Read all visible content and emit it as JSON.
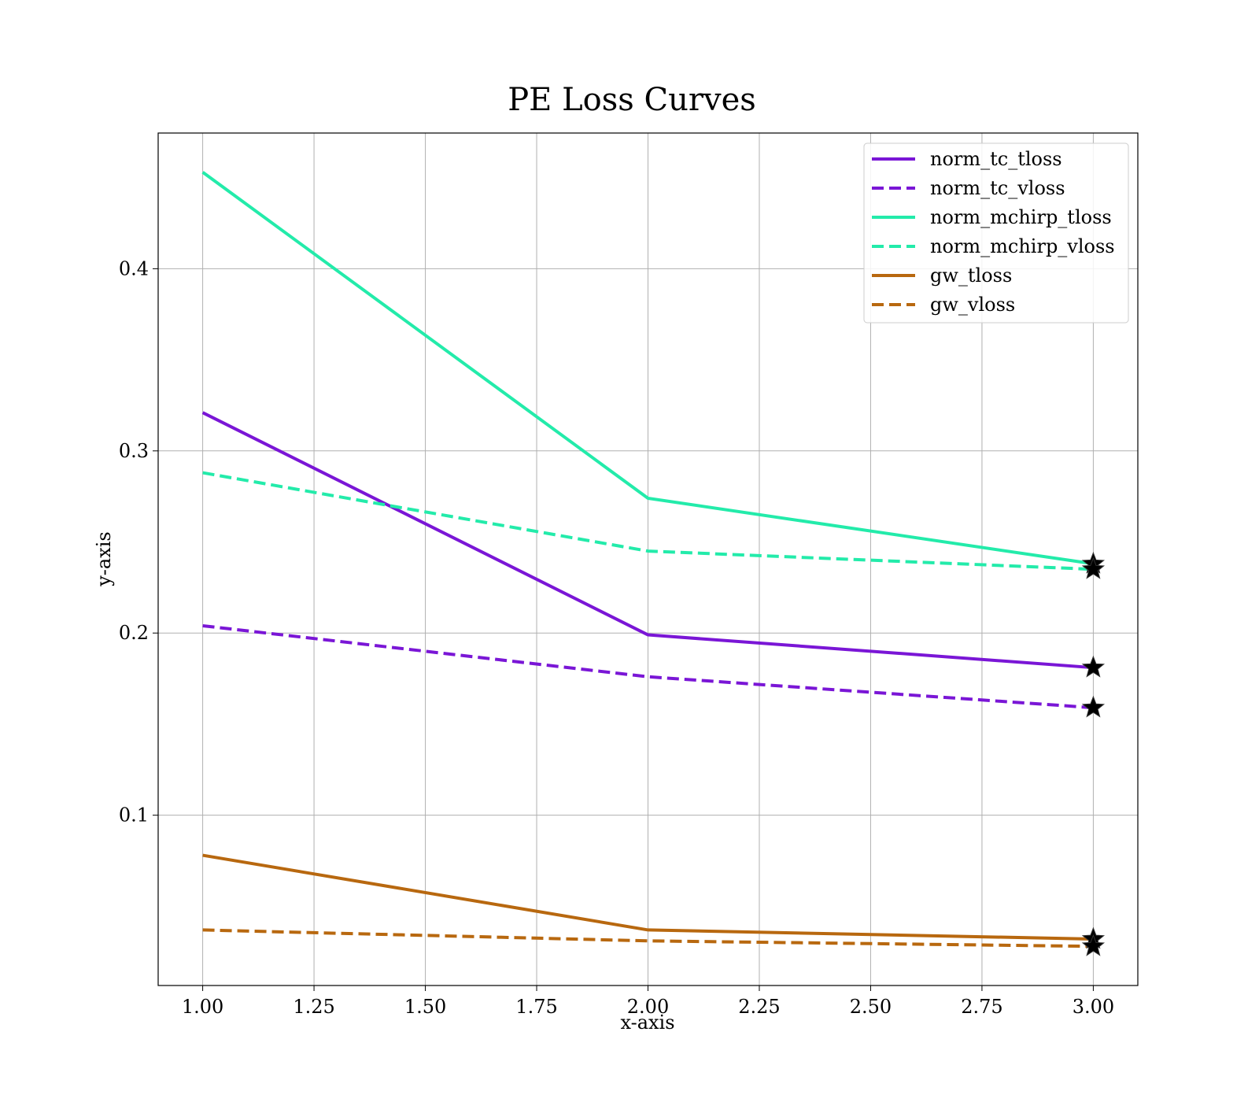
{
  "chart_data": {
    "type": "line",
    "title": "PE Loss Curves",
    "xlabel": "x-axis",
    "ylabel": "y-axis",
    "xlim": [
      0.9,
      3.1
    ],
    "ylim": [
      0.0065,
      0.4745
    ],
    "x": [
      1,
      2,
      3
    ],
    "xticks": [
      1.0,
      1.25,
      1.5,
      1.75,
      2.0,
      2.25,
      2.5,
      2.75,
      3.0
    ],
    "xtick_labels": [
      "1.00",
      "1.25",
      "1.50",
      "1.75",
      "2.00",
      "2.25",
      "2.50",
      "2.75",
      "3.00"
    ],
    "yticks": [
      0.1,
      0.2,
      0.3,
      0.4
    ],
    "ytick_labels": [
      "0.1",
      "0.2",
      "0.3",
      "0.4"
    ],
    "grid": true,
    "legend_position": "top-right",
    "end_marker": "star",
    "series": [
      {
        "name": "norm_tc_tloss",
        "values": [
          0.321,
          0.199,
          0.181
        ],
        "color": "#7a16d6",
        "style": "solid"
      },
      {
        "name": "norm_tc_vloss",
        "values": [
          0.204,
          0.176,
          0.159
        ],
        "color": "#7a16d6",
        "style": "dashed"
      },
      {
        "name": "norm_mchirp_tloss",
        "values": [
          0.453,
          0.274,
          0.238
        ],
        "color": "#23ebaa",
        "style": "solid"
      },
      {
        "name": "norm_mchirp_vloss",
        "values": [
          0.288,
          0.245,
          0.235
        ],
        "color": "#23ebaa",
        "style": "dashed"
      },
      {
        "name": "gw_tloss",
        "values": [
          0.078,
          0.037,
          0.032
        ],
        "color": "#b8680f",
        "style": "solid"
      },
      {
        "name": "gw_vloss",
        "values": [
          0.037,
          0.031,
          0.028
        ],
        "color": "#b8680f",
        "style": "dashed"
      }
    ]
  }
}
